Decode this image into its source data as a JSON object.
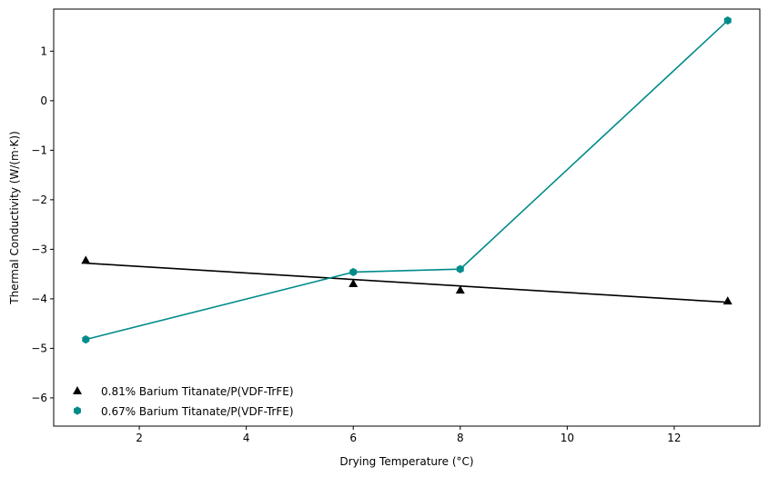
{
  "chart_data": {
    "type": "scatter",
    "title": "",
    "xlabel": "Drying Temperature (°C)",
    "ylabel": "Thermal Conductivity (W/(m·K))",
    "xlim": [
      0.4,
      13.6
    ],
    "ylim": [
      -6.57,
      1.85
    ],
    "xticks": [
      2,
      4,
      6,
      8,
      10,
      12
    ],
    "yticks": [
      -6,
      -5,
      -4,
      -3,
      -2,
      -1,
      0,
      1
    ],
    "grid": false,
    "legend_position": "lower-left",
    "series": [
      {
        "name": "0.81% Barium Titanate/P(VDF-TrFE)",
        "marker": "triangle",
        "color": "#000000",
        "x": [
          1,
          6,
          8,
          13
        ],
        "y": [
          -3.22,
          -3.69,
          -3.82,
          -4.04
        ],
        "fit_line": {
          "x": [
            1,
            13
          ],
          "y": [
            -3.28,
            -4.07
          ]
        }
      },
      {
        "name": "0.67% Barium Titanate/P(VDF-TrFE)",
        "marker": "hexagon",
        "color": "#008b8b",
        "x": [
          1,
          6,
          8,
          13
        ],
        "y": [
          -4.82,
          -3.46,
          -3.4,
          1.62
        ],
        "connect": true
      }
    ]
  }
}
